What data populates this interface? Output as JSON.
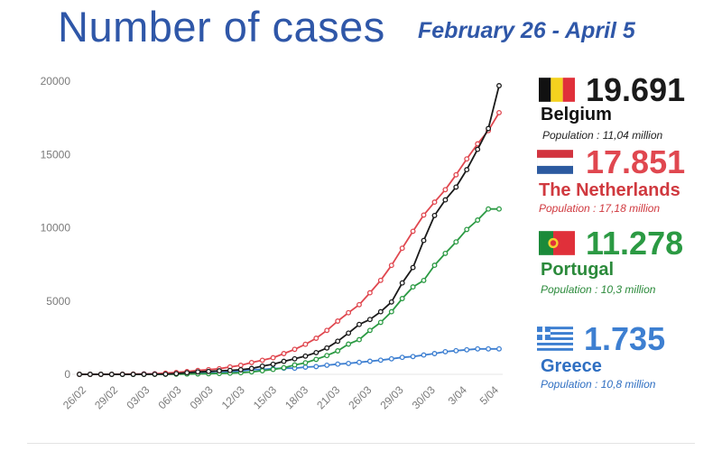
{
  "title": "Number of cases",
  "subtitle": "February 26 - April 5",
  "colors": {
    "belgium": "#1a1a1a",
    "netherlands": "#e0474f",
    "portugal": "#2b9a43",
    "greece": "#3d7fd1",
    "title": "#2f57a8"
  },
  "chart_data": {
    "type": "line",
    "title": "Number of cases",
    "subtitle": "February 26 - April 5",
    "xlabel": "",
    "ylabel": "",
    "ylim": [
      0,
      20000
    ],
    "yticks": [
      0,
      5000,
      10000,
      15000,
      20000
    ],
    "x_tick_labels": [
      "26/02",
      "29/02",
      "03/03",
      "06/03",
      "09/03",
      "12/03",
      "15/03",
      "18/03",
      "21/03",
      "26/03",
      "29/03",
      "30/03",
      "3/04",
      "5/04"
    ],
    "series": [
      {
        "name": "Belgium",
        "color": "#1a1a1a",
        "x": [
          0,
          1,
          2,
          3,
          4,
          5,
          6,
          7,
          8,
          9,
          10,
          11,
          12,
          13,
          14,
          15,
          16,
          17,
          18,
          19,
          20,
          21,
          22,
          23,
          24,
          25,
          26,
          27,
          28,
          29,
          30,
          31,
          32,
          33,
          34,
          35,
          36,
          37,
          38,
          39
        ],
        "values": [
          1,
          1,
          1,
          1,
          1,
          1,
          2,
          8,
          13,
          50,
          109,
          169,
          200,
          239,
          267,
          314,
          399,
          559,
          689,
          886,
          1058,
          1243,
          1486,
          1795,
          2257,
          2815,
          3401,
          3743,
          4269,
          4937,
          6235,
          7284,
          9134,
          10836,
          11899,
          12775,
          13964,
          15348,
          16770,
          19691
        ]
      },
      {
        "name": "The Netherlands",
        "color": "#e0474f",
        "x": [
          0,
          1,
          2,
          3,
          4,
          5,
          6,
          7,
          8,
          9,
          10,
          11,
          12,
          13,
          14,
          15,
          16,
          17,
          18,
          19,
          20,
          21,
          22,
          23,
          24,
          25,
          26,
          27,
          28,
          29,
          30,
          31,
          32,
          33,
          34,
          35,
          36,
          37,
          38,
          39
        ],
        "values": [
          0,
          1,
          2,
          7,
          13,
          18,
          24,
          38,
          82,
          128,
          188,
          265,
          321,
          382,
          503,
          614,
          804,
          959,
          1135,
          1413,
          1705,
          2051,
          2460,
          2994,
          3631,
          4204,
          4749,
          5560,
          6412,
          7431,
          8603,
          9762,
          10866,
          11750,
          12595,
          13614,
          14697,
          15723,
          16627,
          17851
        ]
      },
      {
        "name": "Portugal",
        "color": "#2b9a43",
        "x": [
          0,
          1,
          2,
          3,
          4,
          5,
          6,
          7,
          8,
          9,
          10,
          11,
          12,
          13,
          14,
          15,
          16,
          17,
          18,
          19,
          20,
          21,
          22,
          23,
          24,
          25,
          26,
          27,
          28,
          29,
          30,
          31,
          32,
          33,
          34,
          35,
          36,
          37,
          38,
          39
        ],
        "values": [
          0,
          0,
          0,
          0,
          0,
          2,
          4,
          5,
          8,
          13,
          20,
          30,
          41,
          59,
          78,
          112,
          169,
          245,
          331,
          448,
          642,
          785,
          1020,
          1280,
          1600,
          2060,
          2362,
          2995,
          3544,
          4268,
          5170,
          5962,
          6408,
          7443,
          8251,
          9034,
          9886,
          10524,
          11278,
          11278
        ]
      },
      {
        "name": "Greece",
        "color": "#3d7fd1",
        "x": [
          0,
          1,
          2,
          3,
          4,
          5,
          6,
          7,
          8,
          9,
          10,
          11,
          12,
          13,
          14,
          15,
          16,
          17,
          18,
          19,
          20,
          21,
          22,
          23,
          24,
          25,
          26,
          27,
          28,
          29,
          30,
          31,
          32,
          33,
          34,
          35,
          36,
          37,
          38,
          39
        ],
        "values": [
          1,
          3,
          4,
          7,
          7,
          9,
          31,
          45,
          46,
          73,
          73,
          89,
          99,
          99,
          190,
          228,
          331,
          331,
          387,
          418,
          418,
          495,
          530,
          624,
          695,
          743,
          821,
          892,
          966,
          1061,
          1156,
          1212,
          1314,
          1415,
          1544,
          1613,
          1673,
          1735,
          1735,
          1735
        ]
      }
    ]
  },
  "legend": [
    {
      "id": "belgium",
      "value": "19.691",
      "country": "Belgium",
      "population": "Population : 11,04 million",
      "color": "#1a1a1a",
      "flag": "belgium-flag-icon"
    },
    {
      "id": "netherlands",
      "value": "17.851",
      "country": "The Netherlands",
      "population": "Population : 17,18 million",
      "color": "#e0474f",
      "flag": "netherlands-flag-icon"
    },
    {
      "id": "portugal",
      "value": "11.278",
      "country": "Portugal",
      "population": "Population : 10,3 million",
      "color": "#2b9a43",
      "flag": "portugal-flag-icon"
    },
    {
      "id": "greece",
      "value": "1.735",
      "country": "Greece",
      "population": "Population : 10,8 million",
      "color": "#3d7fd1",
      "flag": "greece-flag-icon"
    }
  ]
}
